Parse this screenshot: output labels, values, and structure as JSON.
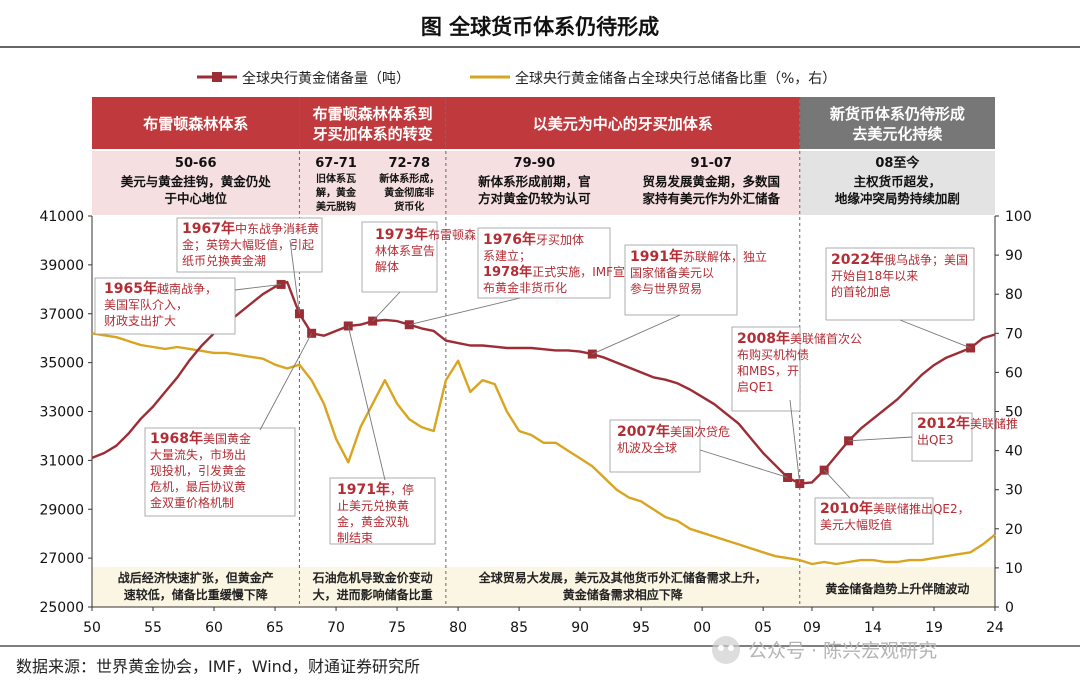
{
  "chart_data": {
    "type": "line",
    "title": "图  全球货币体系仍待形成",
    "source": "数据来源：世界黄金协会，IMF，Wind，财通证券研究所",
    "watermark": "公众号 · 陈兴宏观研究",
    "colors": {
      "gold_tonnes": "#9c2d35",
      "share_pct": "#d9a520",
      "band_red": "#c0393c",
      "band_gray": "#777777",
      "sub_pink": "#f6dfe0",
      "sub_gray": "#e3e3e3",
      "note_bg": "#fbf6e3",
      "text_red": "#b32d35"
    },
    "legend": [
      {
        "name": "全球央行黄金储备量（吨）",
        "series": "gold_tonnes"
      },
      {
        "name": "全球央行黄金储备占全球央行总储备比重（%，右）",
        "series": "share_pct"
      }
    ],
    "x_axis": {
      "range": [
        1950,
        2024
      ],
      "tick_values": [
        1950,
        1955,
        1960,
        1965,
        1970,
        1975,
        1980,
        1985,
        1990,
        1995,
        2000,
        2005,
        2009,
        2014,
        2019,
        2024
      ],
      "tick_labels": [
        "50",
        "55",
        "60",
        "65",
        "70",
        "75",
        "80",
        "85",
        "90",
        "95",
        "00",
        "05",
        "09",
        "14",
        "19",
        "24"
      ]
    },
    "y_axis_left": {
      "range": [
        25000,
        41000
      ],
      "ticks": [
        "25000",
        "27000",
        "29000",
        "31000",
        "33000",
        "35000",
        "37000",
        "39000",
        "41000"
      ]
    },
    "y_axis_right": {
      "range": [
        0,
        100
      ],
      "ticks": [
        "0",
        "10",
        "20",
        "30",
        "40",
        "50",
        "60",
        "70",
        "80",
        "90",
        "100"
      ]
    },
    "periods": [
      {
        "band": "布雷顿森林体系",
        "start": 1950,
        "end": 1967,
        "style": "red",
        "subs": [
          {
            "title": "50-66",
            "text": [
              "美元与黄金挂钩，黄金仍处",
              "于中心地位"
            ]
          }
        ],
        "note": [
          "战后经济快速扩张，但黄金产",
          "速较低，储备比重缓慢下降"
        ]
      },
      {
        "band": [
          "布雷顿森林体系到",
          "牙买加体系的转变"
        ],
        "start": 1967,
        "end": 1979,
        "style": "red",
        "subs": [
          {
            "title": "67-71",
            "text": [
              "旧体系瓦",
              "解，黄金",
              "美元脱钩"
            ]
          },
          {
            "title": "72-78",
            "text": [
              "新体系形成，",
              "黄金彻底非",
              "货币化"
            ]
          }
        ],
        "note": [
          "石油危机导致金价变动",
          "大，进而影响储备比重"
        ]
      },
      {
        "band": "以美元为中心的牙买加体系",
        "start": 1979,
        "end": 2008,
        "style": "red",
        "subs": [
          {
            "title": "79-90",
            "text": [
              "新体系形成前期，官",
              "方对黄金仍较为认可"
            ]
          },
          {
            "title": "91-07",
            "text": [
              "贸易发展黄金期，多数国",
              "家持有美元作为外汇储备"
            ]
          }
        ],
        "note": [
          "全球贸易大发展，美元及其他货币外汇储备需求上升，",
          "黄金储备需求相应下降"
        ]
      },
      {
        "band": [
          "新货币体系仍待形成",
          "去美元化持续"
        ],
        "start": 2008,
        "end": 2024,
        "style": "gray",
        "subs": [
          {
            "title": "08至今",
            "text": [
              "主权货币超发，",
              "地缘冲突局势持续加剧"
            ]
          }
        ],
        "note": [
          "黄金储备趋势上升伴随波动"
        ]
      }
    ],
    "series": [
      {
        "name": "全球央行黄金储备量（吨）",
        "axis": "left",
        "key": "gold_tonnes",
        "x": [
          1950,
          1951,
          1952,
          1953,
          1954,
          1955,
          1956,
          1957,
          1958,
          1959,
          1960,
          1961,
          1962,
          1963,
          1964,
          1965,
          1966,
          1967,
          1968,
          1969,
          1970,
          1971,
          1972,
          1973,
          1974,
          1975,
          1976,
          1977,
          1978,
          1979,
          1980,
          1981,
          1982,
          1983,
          1984,
          1985,
          1986,
          1987,
          1988,
          1989,
          1990,
          1991,
          1992,
          1993,
          1994,
          1995,
          1996,
          1997,
          1998,
          1999,
          2000,
          2001,
          2002,
          2003,
          2004,
          2005,
          2006,
          2007,
          2008,
          2009,
          2010,
          2011,
          2012,
          2013,
          2014,
          2015,
          2016,
          2017,
          2018,
          2019,
          2020,
          2021,
          2022,
          2023,
          2024
        ],
        "values": [
          31100,
          31300,
          31600,
          32100,
          32700,
          33200,
          33800,
          34400,
          35100,
          35700,
          36200,
          36600,
          37000,
          37400,
          37800,
          38100,
          38300,
          37000,
          36200,
          36100,
          36300,
          36500,
          36550,
          36700,
          36750,
          36700,
          36550,
          36400,
          36300,
          35900,
          35800,
          35700,
          35700,
          35650,
          35600,
          35600,
          35600,
          35550,
          35500,
          35500,
          35450,
          35350,
          35200,
          35000,
          34800,
          34600,
          34400,
          34300,
          34150,
          33900,
          33600,
          33300,
          32900,
          32500,
          31900,
          31300,
          30800,
          30300,
          30050,
          30100,
          30600,
          31200,
          31800,
          32300,
          32700,
          33100,
          33500,
          34000,
          34500,
          34900,
          35200,
          35400,
          35600,
          36000,
          36150
        ]
      },
      {
        "name": "全球央行黄金储备占全球央行总储备比重（%，右）",
        "axis": "right",
        "key": "share_pct",
        "x": [
          1950,
          1951,
          1952,
          1953,
          1954,
          1955,
          1956,
          1957,
          1958,
          1959,
          1960,
          1961,
          1962,
          1963,
          1964,
          1965,
          1966,
          1967,
          1968,
          1969,
          1970,
          1971,
          1972,
          1973,
          1974,
          1975,
          1976,
          1977,
          1978,
          1979,
          1980,
          1981,
          1982,
          1983,
          1984,
          1985,
          1986,
          1987,
          1988,
          1989,
          1990,
          1991,
          1992,
          1993,
          1994,
          1995,
          1996,
          1997,
          1998,
          1999,
          2000,
          2001,
          2002,
          2003,
          2004,
          2005,
          2006,
          2007,
          2008,
          2009,
          2010,
          2011,
          2012,
          2013,
          2014,
          2015,
          2016,
          2017,
          2018,
          2019,
          2020,
          2021,
          2022,
          2023,
          2024
        ],
        "values": [
          70,
          69.5,
          69,
          68,
          67,
          66.5,
          66,
          66.5,
          66,
          65.5,
          65,
          65,
          64.5,
          64,
          63.5,
          62,
          61,
          62,
          58,
          52,
          43,
          37,
          46,
          52,
          58,
          52,
          48,
          46,
          45,
          58,
          63,
          55,
          58,
          57,
          50,
          45,
          44,
          42,
          42,
          40,
          38,
          36,
          33,
          30,
          28,
          27,
          25,
          23,
          22,
          20,
          19,
          18,
          17,
          16,
          15,
          14,
          13,
          12.5,
          12,
          11,
          11.5,
          11,
          11.5,
          12,
          12,
          11.5,
          11.5,
          12,
          12,
          12.5,
          13,
          13.5,
          14,
          16,
          18.5
        ]
      }
    ],
    "markers": {
      "gold_tonnes": [
        1965.5,
        1967,
        1968,
        1971,
        1973,
        1976,
        1991,
        2007,
        2008,
        2010,
        2012,
        2022
      ]
    },
    "annotations": [
      {
        "year": "1965年",
        "text": [
          "越南战争，",
          "美国军队介入，",
          "财政支出扩大"
        ]
      },
      {
        "year": "1967年",
        "text": [
          "中东战争消耗黄",
          "金；英镑大幅贬值，引起",
          "纸币兑换黄金潮"
        ]
      },
      {
        "year": "1968年",
        "text": [
          "美国黄金",
          "大量流失，市场出",
          "现投机，引发黄金",
          "危机，最后协议黄",
          "金双重价格机制"
        ]
      },
      {
        "year": "1971年",
        "text": [
          "，停",
          "止美元兑换黄",
          "金，黄金双轨",
          "制结束"
        ]
      },
      {
        "year": "1973年",
        "text": [
          "布雷顿森",
          "林体系宣告",
          "解体"
        ]
      },
      {
        "year": "1976年",
        "text": [
          "牙买加体",
          "系建立；",
          "正式实施，IMF宣",
          "布黄金非货币化"
        ],
        "year2": "1978年"
      },
      {
        "year": "1991年",
        "text": [
          "苏联解体，独立",
          "国家储备美元以",
          "参与世界贸易"
        ]
      },
      {
        "year": "2007年",
        "text": [
          "美国次贷危",
          "机波及全球"
        ]
      },
      {
        "year": "2008年",
        "text": [
          "美联储首次公",
          "布购买机构债",
          "和MBS，开",
          "启QE1"
        ]
      },
      {
        "year": "2010年",
        "text": [
          "美联储推出QE2，",
          "美元大幅贬值"
        ]
      },
      {
        "year": "2012年",
        "text": [
          "美联储推",
          "出QE3"
        ]
      },
      {
        "year": "2022年",
        "text": [
          "俄乌战争；美国",
          "开始自18年以来",
          "的首轮加息"
        ]
      }
    ]
  }
}
